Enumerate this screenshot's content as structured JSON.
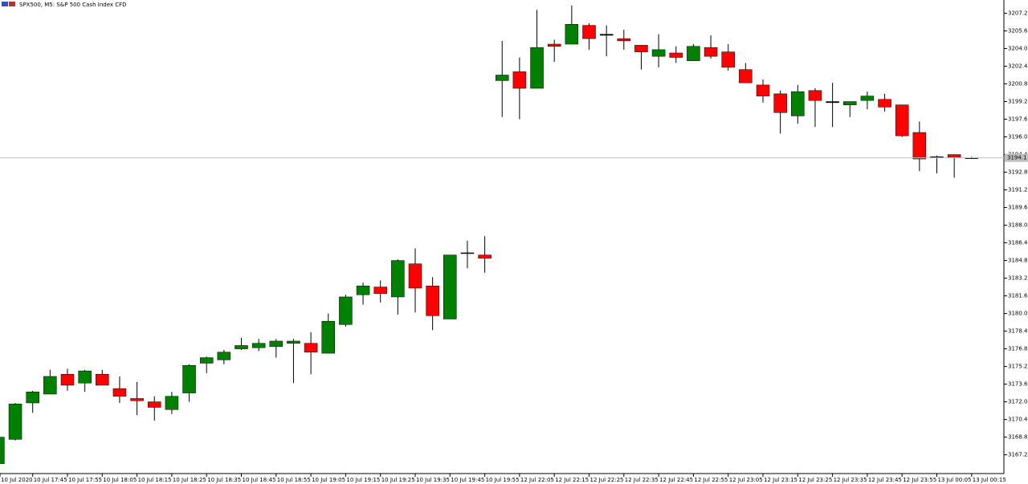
{
  "chart_data": {
    "type": "candlestick",
    "title": "SPX500, M5:  S&P 500 Cash Index CFD",
    "categories": [
      "10 Jul 2020",
      null,
      "10 Jul 17:45",
      null,
      "10 Jul 17:55",
      null,
      "10 Jul 18:05",
      null,
      "10 Jul 18:15",
      null,
      "10 Jul 18:25",
      null,
      "10 Jul 18:35",
      null,
      "10 Jul 18:45",
      null,
      "10 Jul 18:55",
      null,
      "10 Jul 19:05",
      null,
      "10 Jul 19:15",
      null,
      "10 Jul 19:25",
      null,
      "10 Jul 19:35",
      null,
      "10 Jul 19:45",
      null,
      "10 Jul 19:55",
      null,
      "12 Jul 22:05",
      null,
      "12 Jul 22:15",
      null,
      "12 Jul 22:25",
      null,
      "12 Jul 22:35",
      null,
      "12 Jul 22:45",
      null,
      "12 Jul 22:55",
      null,
      "12 Jul 23:05",
      null,
      "12 Jul 23:15",
      null,
      "12 Jul 23:25",
      null,
      "12 Jul 23:35",
      null,
      "12 Jul 23:45",
      null,
      "12 Jul 23:55",
      null,
      "13 Jul 00:05",
      null,
      "13 Jul 00:15"
    ],
    "open": [
      3166.4,
      3168.6,
      3171.9,
      3172.7,
      3174.5,
      3173.7,
      3174.5,
      3173.2,
      3172.3,
      3172.0,
      3171.3,
      3172.8,
      3175.5,
      3175.8,
      3176.8,
      3176.9,
      3177.0,
      3177.3,
      3177.3,
      3176.4,
      3179.0,
      3181.7,
      3182.4,
      3181.5,
      3184.5,
      3182.5,
      3179.5,
      3185.5,
      3185.3,
      3201.1,
      3201.9,
      3200.4,
      3204.4,
      3204.4,
      3206.1,
      3205.3,
      3204.9,
      3204.3,
      3203.3,
      3203.6,
      3202.9,
      3204.1,
      3203.7,
      3202.1,
      3200.7,
      3199.9,
      3197.9,
      3200.2,
      3199.1,
      3198.9,
      3199.3,
      3199.4,
      3198.9,
      3196.4,
      3194.2,
      3194.4,
      3194.1
    ],
    "high": [
      3168.9,
      3171.9,
      3173.0,
      3174.9,
      3175.0,
      3174.9,
      3174.9,
      3174.3,
      3173.8,
      3172.5,
      3172.9,
      3175.4,
      3176.1,
      3176.7,
      3177.8,
      3177.7,
      3177.7,
      3177.7,
      3178.3,
      3180.0,
      3181.7,
      3182.8,
      3183.0,
      3184.9,
      3185.9,
      3183.3,
      3185.3,
      3186.6,
      3187.0,
      3204.7,
      3203.2,
      3207.5,
      3204.8,
      3207.9,
      3206.3,
      3206.1,
      3205.7,
      3204.3,
      3205.3,
      3204.2,
      3204.4,
      3205.2,
      3204.4,
      3202.7,
      3201.2,
      3200.2,
      3200.7,
      3200.4,
      3200.9,
      3199.2,
      3200.1,
      3199.9,
      3198.9,
      3197.4,
      3194.3,
      3194.4,
      3194.2
    ],
    "low": [
      3166.3,
      3168.5,
      3171.0,
      3172.7,
      3173.0,
      3172.9,
      3173.5,
      3171.9,
      3170.8,
      3170.3,
      3170.9,
      3172.0,
      3174.6,
      3175.4,
      3176.7,
      3176.6,
      3176.0,
      3173.7,
      3174.5,
      3176.4,
      3178.8,
      3180.8,
      3181.0,
      3179.9,
      3180.1,
      3178.5,
      3179.5,
      3184.1,
      3183.7,
      3197.8,
      3197.6,
      3200.4,
      3202.8,
      3204.4,
      3203.9,
      3203.3,
      3203.9,
      3202.1,
      3202.3,
      3202.7,
      3202.9,
      3203.1,
      3202.0,
      3200.9,
      3199.1,
      3196.3,
      3197.2,
      3196.9,
      3196.9,
      3197.8,
      3198.5,
      3198.3,
      3196.0,
      3192.9,
      3192.7,
      3192.3,
      3194.0
    ],
    "close": [
      3168.8,
      3171.8,
      3172.9,
      3174.3,
      3173.5,
      3174.8,
      3173.5,
      3172.5,
      3172.1,
      3171.5,
      3172.5,
      3175.3,
      3176.0,
      3176.5,
      3177.1,
      3177.3,
      3177.5,
      3177.5,
      3176.5,
      3179.3,
      3181.5,
      3182.5,
      3181.8,
      3184.8,
      3182.3,
      3179.8,
      3185.3,
      3185.5,
      3185.0,
      3201.6,
      3200.4,
      3204.1,
      3204.2,
      3206.2,
      3204.9,
      3205.2,
      3204.7,
      3203.7,
      3203.9,
      3203.2,
      3204.2,
      3203.3,
      3202.3,
      3200.9,
      3199.7,
      3198.2,
      3200.1,
      3199.3,
      3199.2,
      3199.2,
      3199.7,
      3198.7,
      3196.1,
      3194.0,
      3194.2,
      3194.1,
      3194.1
    ],
    "up_color": "#008000",
    "down_color": "#ff0000",
    "ylim": [
      3165.5,
      3208.4
    ],
    "yticks": [
      3167.2,
      3168.8,
      3170.4,
      {
        "value": 3172,
        "label": "3172.0"
      },
      3173.6,
      3175.2,
      3176.8,
      3178.4,
      {
        "value": 3180,
        "label": "3180.0"
      },
      3181.6,
      3183.2,
      3184.8,
      3186.4,
      {
        "value": 3188,
        "label": "3188.0"
      },
      3189.6,
      3191.2,
      3192.8,
      3194.4,
      {
        "value": 3196,
        "label": "3196.0"
      },
      3197.6,
      3199.2,
      3200.8,
      3202.4,
      {
        "value": 3204,
        "label": "3204.0"
      },
      3205.6,
      3207.2
    ],
    "current_price": 3194.1
  }
}
